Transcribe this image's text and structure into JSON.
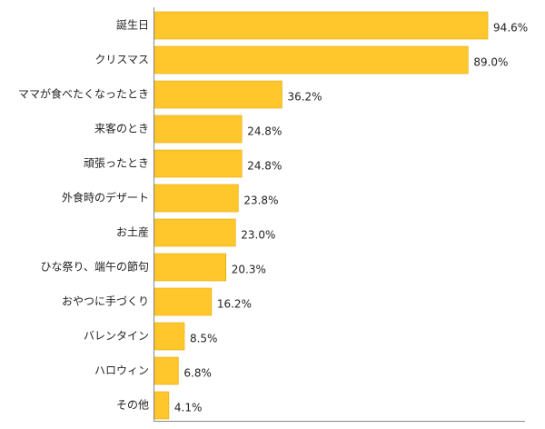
{
  "chart_data": {
    "type": "bar",
    "orientation": "horizontal",
    "categories": [
      "誕生日",
      "クリスマス",
      "ママが食べたくなったとき",
      "来客のとき",
      "頑張ったとき",
      "外食時のデザート",
      "お土産",
      "ひな祭り、端午の節句",
      "おやつに手づくり",
      "バレンタイン",
      "ハロウィン",
      "その他"
    ],
    "values": [
      94.6,
      89.0,
      36.2,
      24.8,
      24.8,
      23.8,
      23.0,
      20.3,
      16.2,
      8.5,
      6.8,
      4.1
    ],
    "value_labels": [
      "94.6%",
      "89.0%",
      "36.2%",
      "24.8%",
      "24.8%",
      "23.8%",
      "23.0%",
      "20.3%",
      "16.2%",
      "8.5%",
      "6.8%",
      "4.1%"
    ],
    "xlim": [
      0,
      100
    ],
    "title": "",
    "xlabel": "",
    "ylabel": "",
    "grid": false,
    "legend": "none",
    "colors": {
      "bar_fill": "#FFC72C",
      "bar_stroke": "#E0A800",
      "axis": "#888888",
      "text": "#222222"
    }
  }
}
